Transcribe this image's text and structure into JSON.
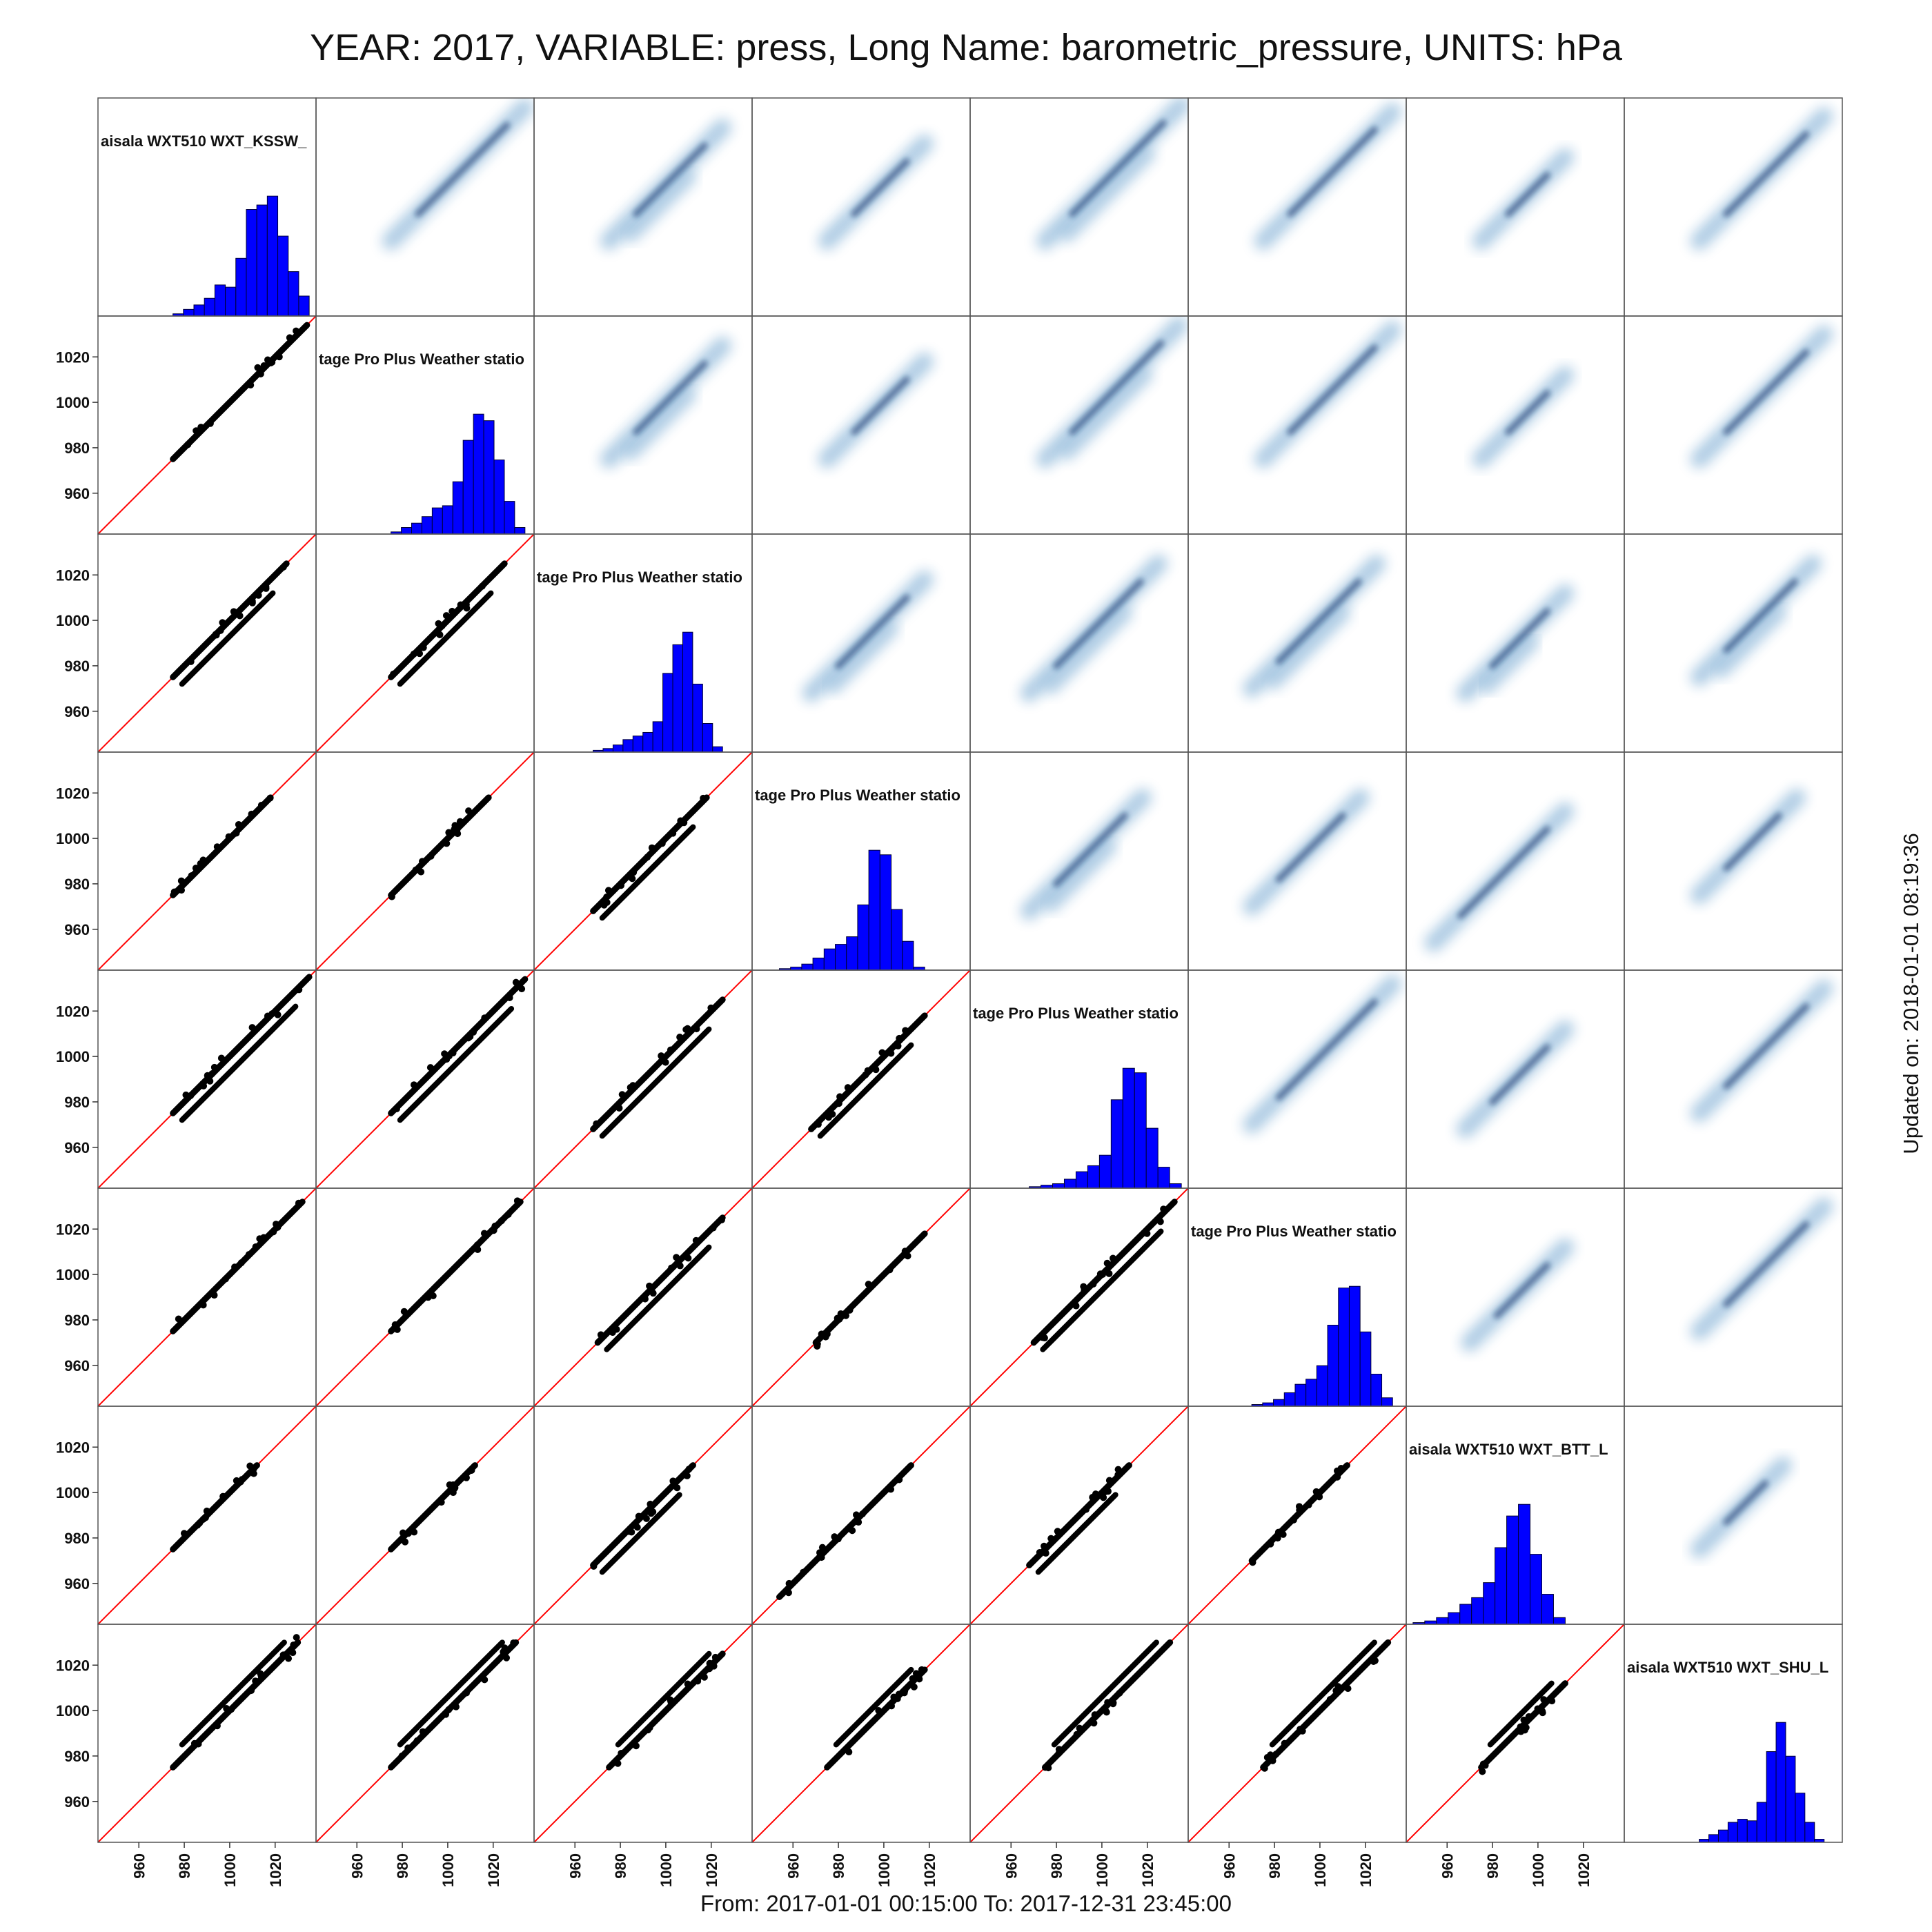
{
  "title": "YEAR: 2017, VARIABLE: press, Long Name: barometric_pressure, UNITS: hPa",
  "footer": "From: 2017-01-01 00:15:00 To: 2017-12-31 23:45:00",
  "updated": "Updated on: 2018-01-01 08:19:36",
  "colors": {
    "hist": "#0000ff",
    "hist_edge": "#000033",
    "diag_line": "#ff0000",
    "scatter": "#000000",
    "density": "#1f6fb4",
    "density_core": "#08306b"
  },
  "chart_data": {
    "type": "scatter-matrix",
    "n": 8,
    "axis_range": [
      942,
      1038
    ],
    "ticks": [
      960,
      980,
      1000,
      1020
    ],
    "tick_labels": [
      "960",
      "980",
      "1000",
      "1020"
    ],
    "lower_panels": "scatter",
    "upper_panels": "density",
    "diagonal": "histogram",
    "identity_line": true,
    "stations": [
      {
        "label": "aisala WXT510 WXT_KSSW_",
        "range": [
          975,
          1035
        ],
        "hist": [
          1,
          3,
          5,
          8,
          14,
          13,
          26,
          48,
          50,
          54,
          36,
          20,
          9
        ]
      },
      {
        "label": "tage Pro Plus Weather statio",
        "range": [
          975,
          1034
        ],
        "hist": [
          1,
          3,
          5,
          8,
          12,
          13,
          24,
          43,
          55,
          52,
          34,
          15,
          3
        ]
      },
      {
        "label": "tage Pro Plus Weather statio",
        "range": [
          968,
          1025
        ],
        "hist": [
          1,
          2,
          4,
          7,
          9,
          11,
          17,
          44,
          60,
          67,
          38,
          16,
          3
        ]
      },
      {
        "label": "tage Pro Plus Weather statio",
        "range": [
          954,
          1018
        ],
        "hist": [
          1,
          2,
          4,
          8,
          14,
          17,
          22,
          43,
          79,
          76,
          40,
          19,
          2
        ]
      },
      {
        "label": "tage Pro Plus Weather statio",
        "range": [
          968,
          1035
        ],
        "hist": [
          1,
          2,
          3,
          6,
          11,
          15,
          22,
          59,
          80,
          77,
          40,
          14,
          3
        ]
      },
      {
        "label": "tage Pro Plus Weather statio",
        "range": [
          970,
          1032
        ],
        "hist": [
          1,
          2,
          4,
          8,
          13,
          16,
          24,
          48,
          70,
          71,
          44,
          19,
          5
        ]
      },
      {
        "label": "aisala WXT510 WXT_BTT_L",
        "range": [
          945,
          1012
        ],
        "hist": [
          1,
          2,
          4,
          7,
          12,
          16,
          25,
          46,
          65,
          72,
          42,
          18,
          4
        ]
      },
      {
        "label": "aisala WXT510 WXT_SHU_L",
        "range": [
          975,
          1030
        ],
        "hist": [
          2,
          5,
          8,
          13,
          15,
          14,
          26,
          59,
          78,
          56,
          32,
          13,
          2
        ]
      }
    ]
  }
}
